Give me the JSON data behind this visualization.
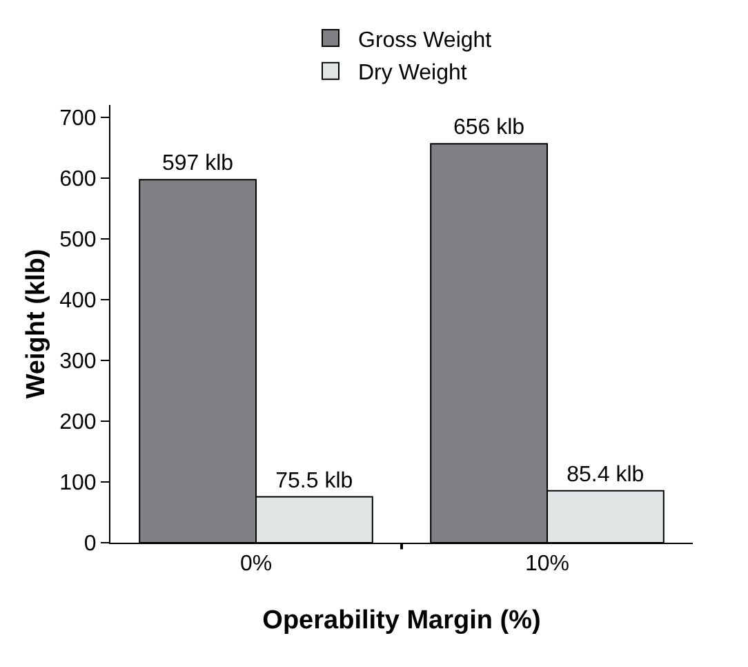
{
  "chart_data": {
    "type": "bar",
    "xlabel": "Operability Margin (%)",
    "ylabel": "Weight (klb)",
    "categories": [
      "0%",
      "10%"
    ],
    "series": [
      {
        "name": "Gross Weight",
        "color": "#808085",
        "values": [
          597,
          656
        ],
        "value_labels": [
          "597 klb",
          "656 klb"
        ]
      },
      {
        "name": "Dry Weight",
        "color": "#e0e6e6",
        "values": [
          75.5,
          85.4
        ],
        "value_labels": [
          "75.5 klb",
          "85.4 klb"
        ]
      }
    ],
    "ylim": [
      0,
      720
    ],
    "yticks": [
      0,
      100,
      200,
      300,
      400,
      500,
      600,
      700
    ],
    "grid": false,
    "legend": "top"
  }
}
